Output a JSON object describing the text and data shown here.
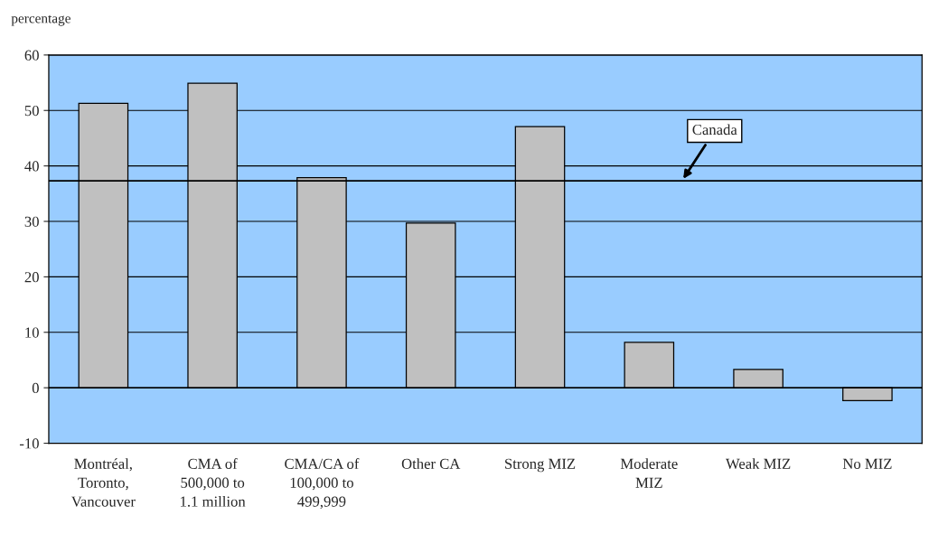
{
  "chart_data": {
    "type": "bar",
    "ylabel": "percentage",
    "categories": [
      "Montréal,\nToronto,\nVancouver",
      "CMA of\n500,000 to\n1.1 million",
      "CMA/CA of\n100,000 to\n499,999",
      "Other CA",
      "Strong MIZ",
      "Moderate\nMIZ",
      "Weak MIZ",
      "No MIZ"
    ],
    "values": [
      51.3,
      54.9,
      37.9,
      29.7,
      47.1,
      8.2,
      3.3,
      -2.3
    ],
    "color": "#c0c0c0",
    "ylim": [
      -10,
      60
    ],
    "yticks": [
      -10,
      0,
      10,
      20,
      30,
      40,
      50,
      60
    ],
    "grid": "y",
    "legend": false,
    "ref_lines": [
      {
        "axis": "y",
        "value": 37.3,
        "label": "Canada",
        "color": "#000000"
      }
    ]
  }
}
